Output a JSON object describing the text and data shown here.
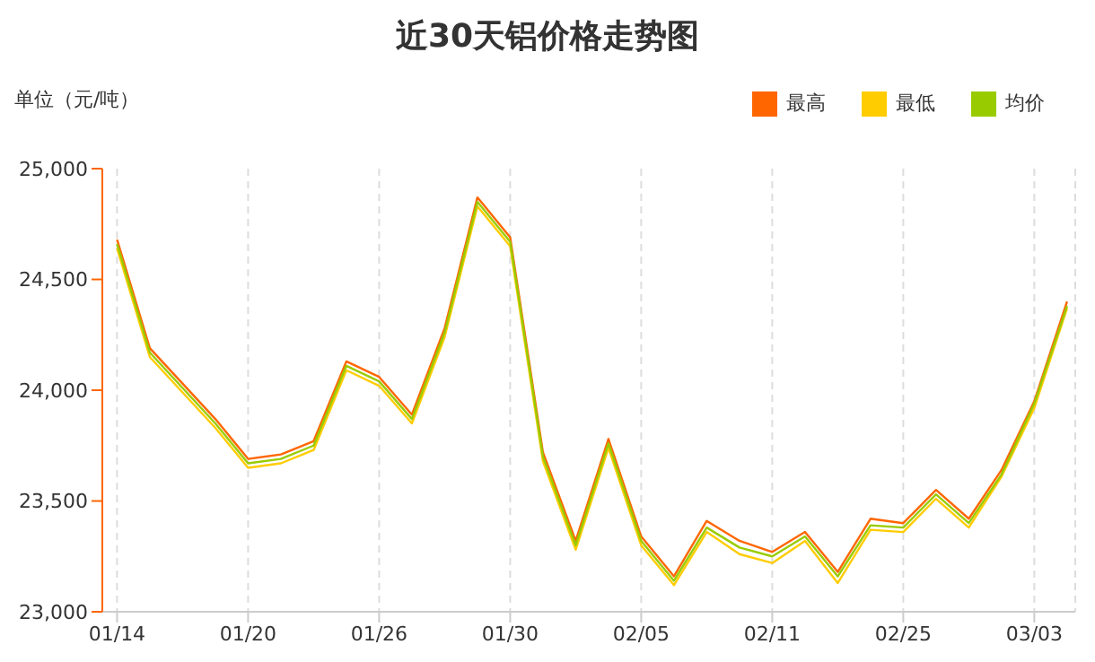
{
  "chart_data": {
    "type": "line",
    "title": "近30天铝价格走势图",
    "ylabel": "单位（元/吨）",
    "categories": [
      "01/14",
      null,
      null,
      null,
      "01/20",
      null,
      null,
      null,
      "01/26",
      null,
      null,
      null,
      "01/30",
      null,
      null,
      null,
      "02/05",
      null,
      null,
      null,
      "02/11",
      null,
      null,
      null,
      "02/25",
      null,
      null,
      null,
      "03/03",
      null
    ],
    "series": [
      {
        "name": "最高",
        "color": "#ff6600",
        "values": [
          24680,
          24190,
          24030,
          23870,
          23690,
          23710,
          23770,
          24130,
          24060,
          23890,
          24280,
          24870,
          24690,
          23720,
          23320,
          23780,
          23340,
          23160,
          23410,
          23320,
          23270,
          23360,
          23180,
          23420,
          23400,
          23550,
          23420,
          23640,
          23950,
          24400
        ]
      },
      {
        "name": "最低",
        "color": "#ffcc00",
        "values": [
          24640,
          24150,
          23990,
          23830,
          23650,
          23670,
          23730,
          24090,
          24020,
          23850,
          24240,
          24830,
          24650,
          23680,
          23280,
          23740,
          23300,
          23120,
          23360,
          23260,
          23220,
          23320,
          23130,
          23370,
          23360,
          23510,
          23380,
          23610,
          23920,
          24370
        ]
      },
      {
        "name": "均价",
        "color": "#99cc00",
        "values": [
          24660,
          24170,
          24010,
          23850,
          23670,
          23690,
          23750,
          24110,
          24040,
          23870,
          24260,
          24850,
          24670,
          23700,
          23300,
          23760,
          23320,
          23140,
          23380,
          23290,
          23250,
          23340,
          23160,
          23390,
          23380,
          23530,
          23400,
          23620,
          23940,
          24380
        ]
      }
    ],
    "ylim": [
      23000,
      25000
    ],
    "yticks": [
      {
        "value": 23000,
        "label": "23,000"
      },
      {
        "value": 23500,
        "label": "23,500"
      },
      {
        "value": 24000,
        "label": "24,000"
      },
      {
        "value": 24500,
        "label": "24,500"
      },
      {
        "value": 25000,
        "label": "25,000"
      }
    ],
    "grid": "x",
    "legend": "top right",
    "marker": "none",
    "line_style": "solid"
  }
}
